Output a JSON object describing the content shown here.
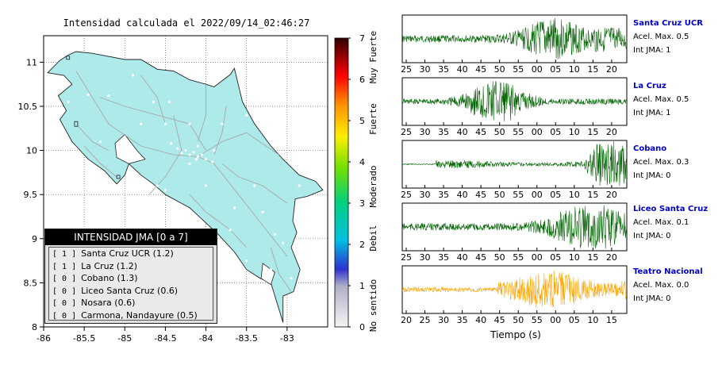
{
  "map": {
    "title": "Intensidad calculada el 2022/09/14_02:46:27",
    "lon_ticks": [
      "-86",
      "-85.5",
      "-85",
      "-84.5",
      "-84",
      "-83.5",
      "-83"
    ],
    "lat_ticks": [
      "11",
      "10.5",
      "10",
      "9.5",
      "9",
      "8.5",
      "8"
    ],
    "lon_range": [
      -86,
      -82.5
    ],
    "lat_range": [
      8,
      11.3
    ],
    "land_color": "#aeeaea",
    "road_color": "#a8a8a8"
  },
  "colorbar": {
    "ticks": [
      "0",
      "1",
      "2",
      "3",
      "4",
      "5",
      "6",
      "7"
    ],
    "labels": [
      "No sentido",
      "Debil",
      "Moderado",
      "Fuerte",
      "Muy Fuerte"
    ]
  },
  "legend": {
    "title": "INTENSIDAD JMA [0 a 7]",
    "items": [
      {
        "level": "[ 1 ]",
        "name": "Santa Cruz UCR (1.2)"
      },
      {
        "level": "[ 1 ]",
        "name": "La Cruz (1.2)"
      },
      {
        "level": "[ 0 ]",
        "name": "Cobano (1.3)"
      },
      {
        "level": "[ 0 ]",
        "name": "Liceo Santa Cruz (0.6)"
      },
      {
        "level": "[ 0 ]",
        "name": "Nosara (0.6)"
      },
      {
        "level": "[ 0 ]",
        "name": "Carmona, Nandayure (0.5)"
      }
    ]
  },
  "stations": [
    {
      "name": "Santa Cruz UCR",
      "accel": "Acel. Max. 0.5",
      "jma": "Int JMA: 1",
      "color": "#006400",
      "ticks": [
        "25",
        "30",
        "35",
        "40",
        "45",
        "50",
        "55",
        "00",
        "05",
        "10",
        "15",
        "20"
      ],
      "burst": 0.68
    },
    {
      "name": "La Cruz",
      "accel": "Acel. Max. 0.5",
      "jma": "Int JMA: 1",
      "color": "#006400",
      "ticks": [
        "25",
        "30",
        "35",
        "40",
        "45",
        "50",
        "55",
        "00",
        "05",
        "10",
        "15",
        "20"
      ],
      "burst": 0.42
    },
    {
      "name": "Cobano",
      "accel": "Acel. Max. 0.3",
      "jma": "Int JMA: 0",
      "color": "#006400",
      "ticks": [
        "25",
        "30",
        "35",
        "40",
        "45",
        "50",
        "55",
        "00",
        "05",
        "10",
        "15",
        "20"
      ],
      "burst": 0.88
    },
    {
      "name": "Liceo Santa Cruz",
      "accel": "Acel. Max. 0.1",
      "jma": "Int JMA: 0",
      "color": "#006400",
      "ticks": [
        "25",
        "30",
        "35",
        "40",
        "45",
        "50",
        "55",
        "00",
        "05",
        "10",
        "15",
        "20"
      ],
      "burst": 0.8
    },
    {
      "name": "Teatro Nacional",
      "accel": "Acel. Max. 0.0",
      "jma": "Int JMA: 0",
      "color": "#ffa500",
      "ticks": [
        "20",
        "25",
        "30",
        "35",
        "40",
        "45",
        "50",
        "55",
        "00",
        "05",
        "10",
        "15"
      ],
      "burst": 0.5
    }
  ],
  "waveform_xlabel": "Tiempo (s)"
}
